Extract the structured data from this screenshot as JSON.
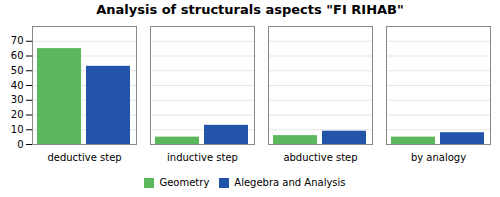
{
  "chart_data": {
    "type": "bar",
    "title": "Analysis of structurals aspects \"FI RIHAB\"",
    "categories": [
      "deductive step",
      "inductive step",
      "abductive step",
      "by analogy"
    ],
    "series": [
      {
        "name": "Geometry",
        "color": "#5cb85c",
        "values": [
          65,
          5,
          6,
          5
        ]
      },
      {
        "name": "Alegebra and Analysis",
        "color": "#2255aa",
        "values": [
          53,
          13,
          9,
          8
        ]
      }
    ],
    "ylim": [
      0,
      80
    ],
    "yticks": [
      0,
      10,
      20,
      30,
      40,
      50,
      60,
      70
    ],
    "grid": true,
    "legend": "bottom"
  }
}
